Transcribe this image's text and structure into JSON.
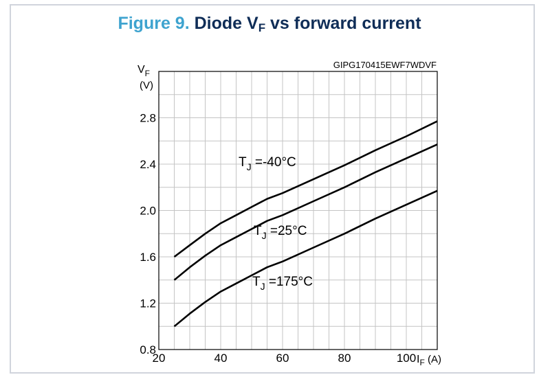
{
  "figure": {
    "number": "Figure 9.",
    "title_main": "Diode V",
    "title_sub": "F",
    "title_rest": " vs forward current",
    "code": "GIPG170415EWF7WDVF"
  },
  "chart_data": {
    "type": "line",
    "ylabel": "VF",
    "ylabel_unit": "(V)",
    "xlabel": "IF (A)",
    "xlim": [
      20,
      110
    ],
    "ylim": [
      0.8,
      3.2
    ],
    "x_ticks": [
      20,
      40,
      60,
      80,
      100
    ],
    "y_ticks": [
      0.8,
      1.2,
      1.6,
      2.0,
      2.4,
      2.8
    ],
    "y_tick_labels": [
      "0.8",
      "1.2",
      "1.6",
      "2.0",
      "2.4",
      "2.8"
    ],
    "grid": true,
    "series": [
      {
        "name": "TJ =-40°C",
        "x": [
          25,
          30,
          35,
          40,
          45,
          50,
          55,
          60,
          70,
          80,
          90,
          100,
          110
        ],
        "y": [
          1.6,
          1.7,
          1.8,
          1.89,
          1.96,
          2.03,
          2.1,
          2.15,
          2.27,
          2.39,
          2.52,
          2.64,
          2.77
        ]
      },
      {
        "name": "TJ =25°C",
        "x": [
          25,
          30,
          35,
          40,
          45,
          50,
          55,
          60,
          70,
          80,
          90,
          100,
          110
        ],
        "y": [
          1.4,
          1.51,
          1.61,
          1.7,
          1.77,
          1.84,
          1.91,
          1.96,
          2.08,
          2.2,
          2.33,
          2.45,
          2.57
        ]
      },
      {
        "name": "TJ =175°C",
        "x": [
          25,
          30,
          35,
          40,
          45,
          50,
          55,
          60,
          70,
          80,
          90,
          100,
          110
        ],
        "y": [
          1.0,
          1.11,
          1.21,
          1.3,
          1.37,
          1.44,
          1.51,
          1.56,
          1.68,
          1.8,
          1.93,
          2.05,
          2.17
        ]
      }
    ],
    "annotations": [
      {
        "base": "T",
        "sub": "J",
        "rest": " =-40°C"
      },
      {
        "base": "T",
        "sub": "J",
        "rest": " =25°C"
      },
      {
        "base": "T",
        "sub": "J",
        "rest": " =175°C"
      }
    ]
  }
}
